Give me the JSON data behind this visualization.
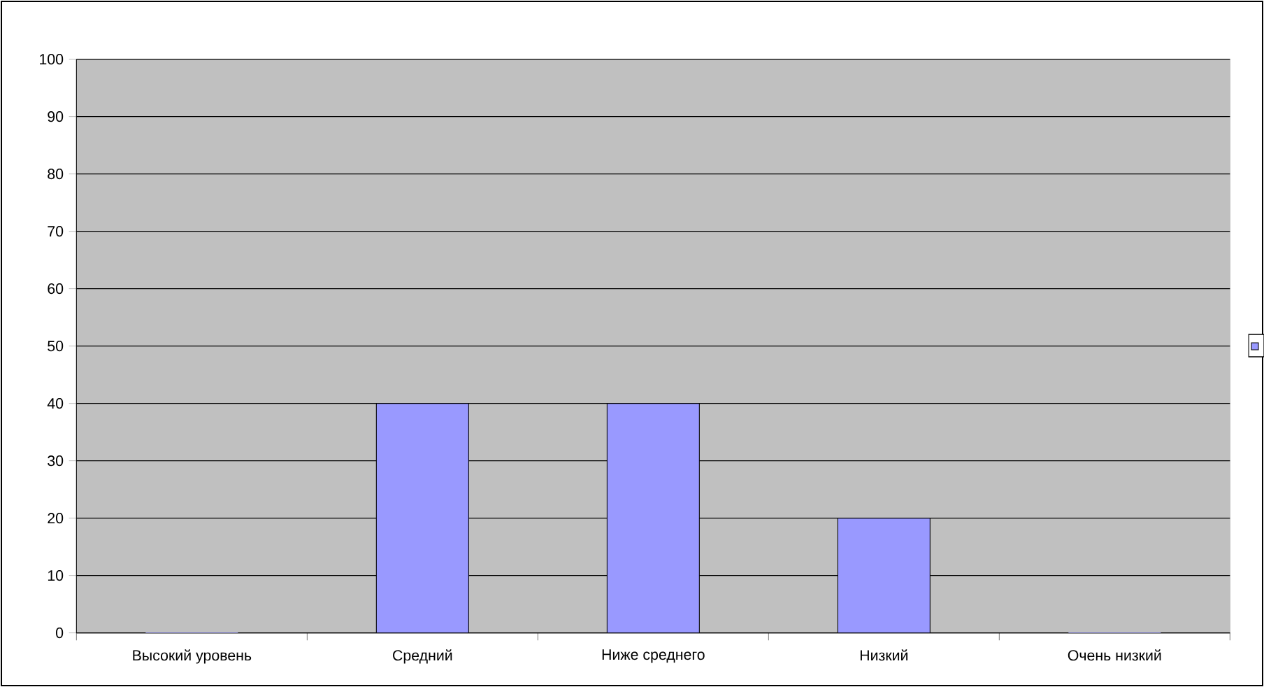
{
  "chart_data": {
    "type": "bar",
    "categories": [
      "Высокий уровень",
      "Средний",
      "Ниже среднего",
      "Низкий",
      "Очень низкий"
    ],
    "values": [
      0,
      40,
      40,
      20,
      0
    ],
    "color": "#9999ff",
    "ylim": [
      0,
      100
    ],
    "yticks": [
      0,
      10,
      20,
      30,
      40,
      50,
      60,
      70,
      80,
      90,
      100
    ],
    "grid": "y"
  }
}
